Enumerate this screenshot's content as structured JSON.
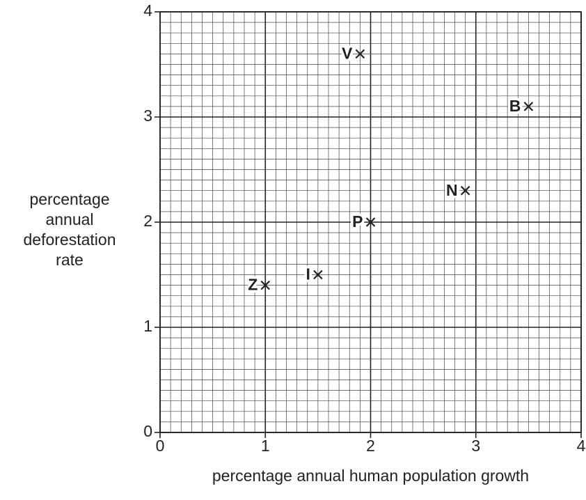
{
  "chart_data": {
    "type": "scatter",
    "xlabel": "percentage annual human population growth",
    "ylabel": "percentage annual deforestation rate",
    "labels": [
      "V",
      "B",
      "N",
      "P",
      "I",
      "Z"
    ],
    "x": [
      1.9,
      3.5,
      2.9,
      2.0,
      1.5,
      1.0
    ],
    "values": [
      3.6,
      3.1,
      2.3,
      2.0,
      1.5,
      1.4
    ],
    "color": "#222222",
    "xlim": [
      0,
      4
    ],
    "xticks": [
      0,
      1,
      2,
      3,
      4
    ],
    "ylim": [
      0,
      4
    ],
    "yticks": [
      0,
      1,
      2,
      3,
      4
    ],
    "grid": true,
    "minor_grid_divisions": 10
  }
}
